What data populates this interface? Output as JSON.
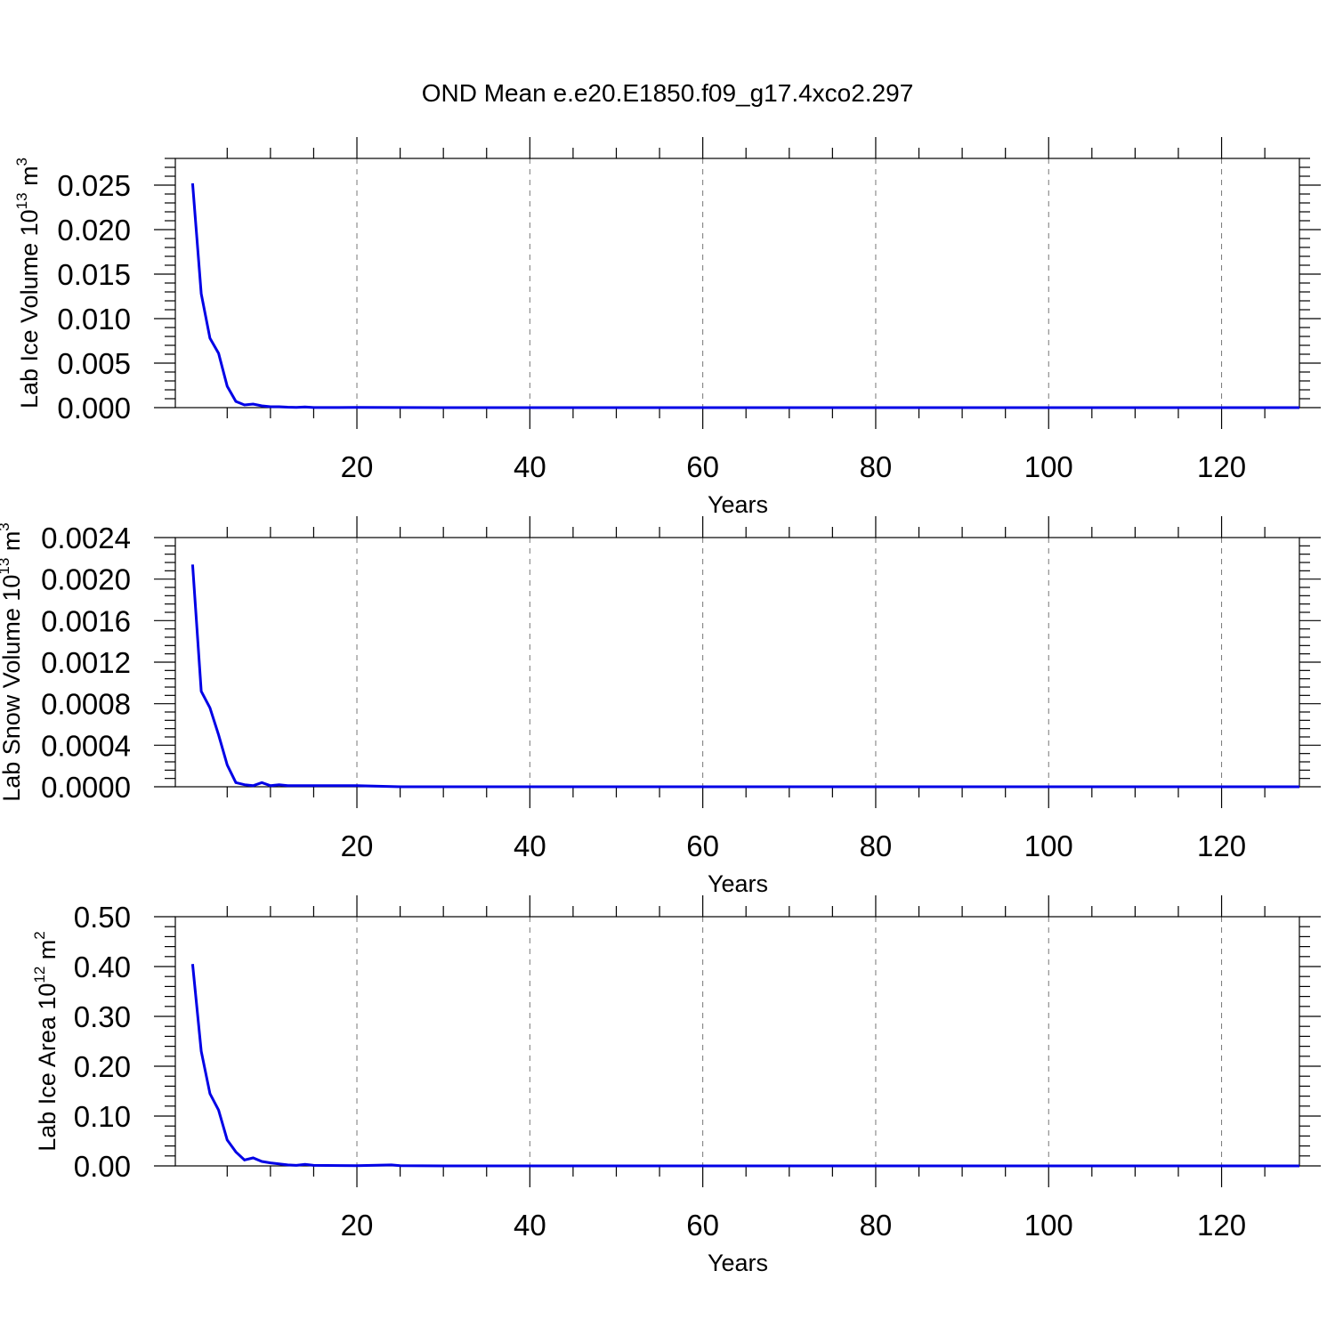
{
  "title": "OND Mean e.e20.E1850.f09_g17.4xco2.297",
  "chart_data": [
    {
      "type": "line",
      "ylabel": "Lab Ice Volume 10",
      "ylabel_exp": "13",
      "ylabel_unit": " m",
      "ylabel_unit_exp": "3",
      "xlabel": "Years",
      "xlim": [
        -1,
        129
      ],
      "ylim": [
        0,
        0.028
      ],
      "xticks": [
        20,
        40,
        60,
        80,
        100,
        120
      ],
      "yticks": [
        0,
        0.005,
        0.01,
        0.015,
        0.02,
        0.025
      ],
      "ytick_labels": [
        "0.000",
        "0.005",
        "0.010",
        "0.015",
        "0.020",
        "0.025"
      ],
      "grid": "x-dashed",
      "series": [
        {
          "color": "#0000e6",
          "x": [
            1,
            2,
            3,
            4,
            5,
            6,
            7,
            8,
            9,
            10,
            11,
            12,
            13,
            14,
            15,
            20,
            25,
            30,
            129
          ],
          "y": [
            0.0252,
            0.0128,
            0.0078,
            0.0061,
            0.0024,
            0.0007,
            0.0003,
            0.0004,
            0.0002,
            0.0001,
            0.0001,
            5e-05,
            3e-05,
            8e-05,
            1e-05,
            2e-05,
            1e-05,
            0.0,
            0.0
          ]
        }
      ]
    },
    {
      "type": "line",
      "ylabel": "Lab Snow Volume 10",
      "ylabel_exp": "13",
      "ylabel_unit": " m",
      "ylabel_unit_exp": "3",
      "xlabel": "Years",
      "xlim": [
        -1,
        129
      ],
      "ylim": [
        0,
        0.0024
      ],
      "xticks": [
        20,
        40,
        60,
        80,
        100,
        120
      ],
      "yticks": [
        0,
        0.0004,
        0.0008,
        0.0012,
        0.0016,
        0.002,
        0.0024
      ],
      "ytick_labels": [
        "0.0000",
        "0.0004",
        "0.0008",
        "0.0012",
        "0.0016",
        "0.0020",
        "0.0024"
      ],
      "grid": "x-dashed",
      "series": [
        {
          "color": "#0000e6",
          "x": [
            1,
            2,
            3,
            4,
            5,
            6,
            7,
            8,
            9,
            10,
            11,
            12,
            13,
            14,
            15,
            20,
            25,
            30,
            129
          ],
          "y": [
            0.00214,
            0.00092,
            0.00076,
            0.0005,
            0.00021,
            4e-05,
            2e-05,
            1e-05,
            4e-05,
            1e-05,
            2e-05,
            1e-05,
            1e-05,
            1e-05,
            1e-05,
            1e-05,
            0.0,
            0.0,
            0.0
          ]
        }
      ]
    },
    {
      "type": "line",
      "ylabel": "Lab Ice Area 10",
      "ylabel_exp": "12",
      "ylabel_unit": " m",
      "ylabel_unit_exp": "2",
      "xlabel": "Years",
      "xlim": [
        -1,
        129
      ],
      "ylim": [
        0,
        0.5
      ],
      "xticks": [
        20,
        40,
        60,
        80,
        100,
        120
      ],
      "yticks": [
        0,
        0.1,
        0.2,
        0.3,
        0.4,
        0.5
      ],
      "ytick_labels": [
        "0.00",
        "0.10",
        "0.20",
        "0.30",
        "0.40",
        "0.50"
      ],
      "grid": "x-dashed",
      "series": [
        {
          "color": "#0000e6",
          "x": [
            1,
            2,
            3,
            4,
            5,
            6,
            7,
            8,
            9,
            10,
            11,
            12,
            13,
            14,
            15,
            20,
            24,
            25,
            30,
            129
          ],
          "y": [
            0.405,
            0.23,
            0.145,
            0.112,
            0.052,
            0.028,
            0.012,
            0.016,
            0.009,
            0.006,
            0.004,
            0.002,
            0.001,
            0.003,
            0.001,
            0.0005,
            0.002,
            0.0005,
            0.0,
            0.0
          ]
        }
      ]
    }
  ]
}
